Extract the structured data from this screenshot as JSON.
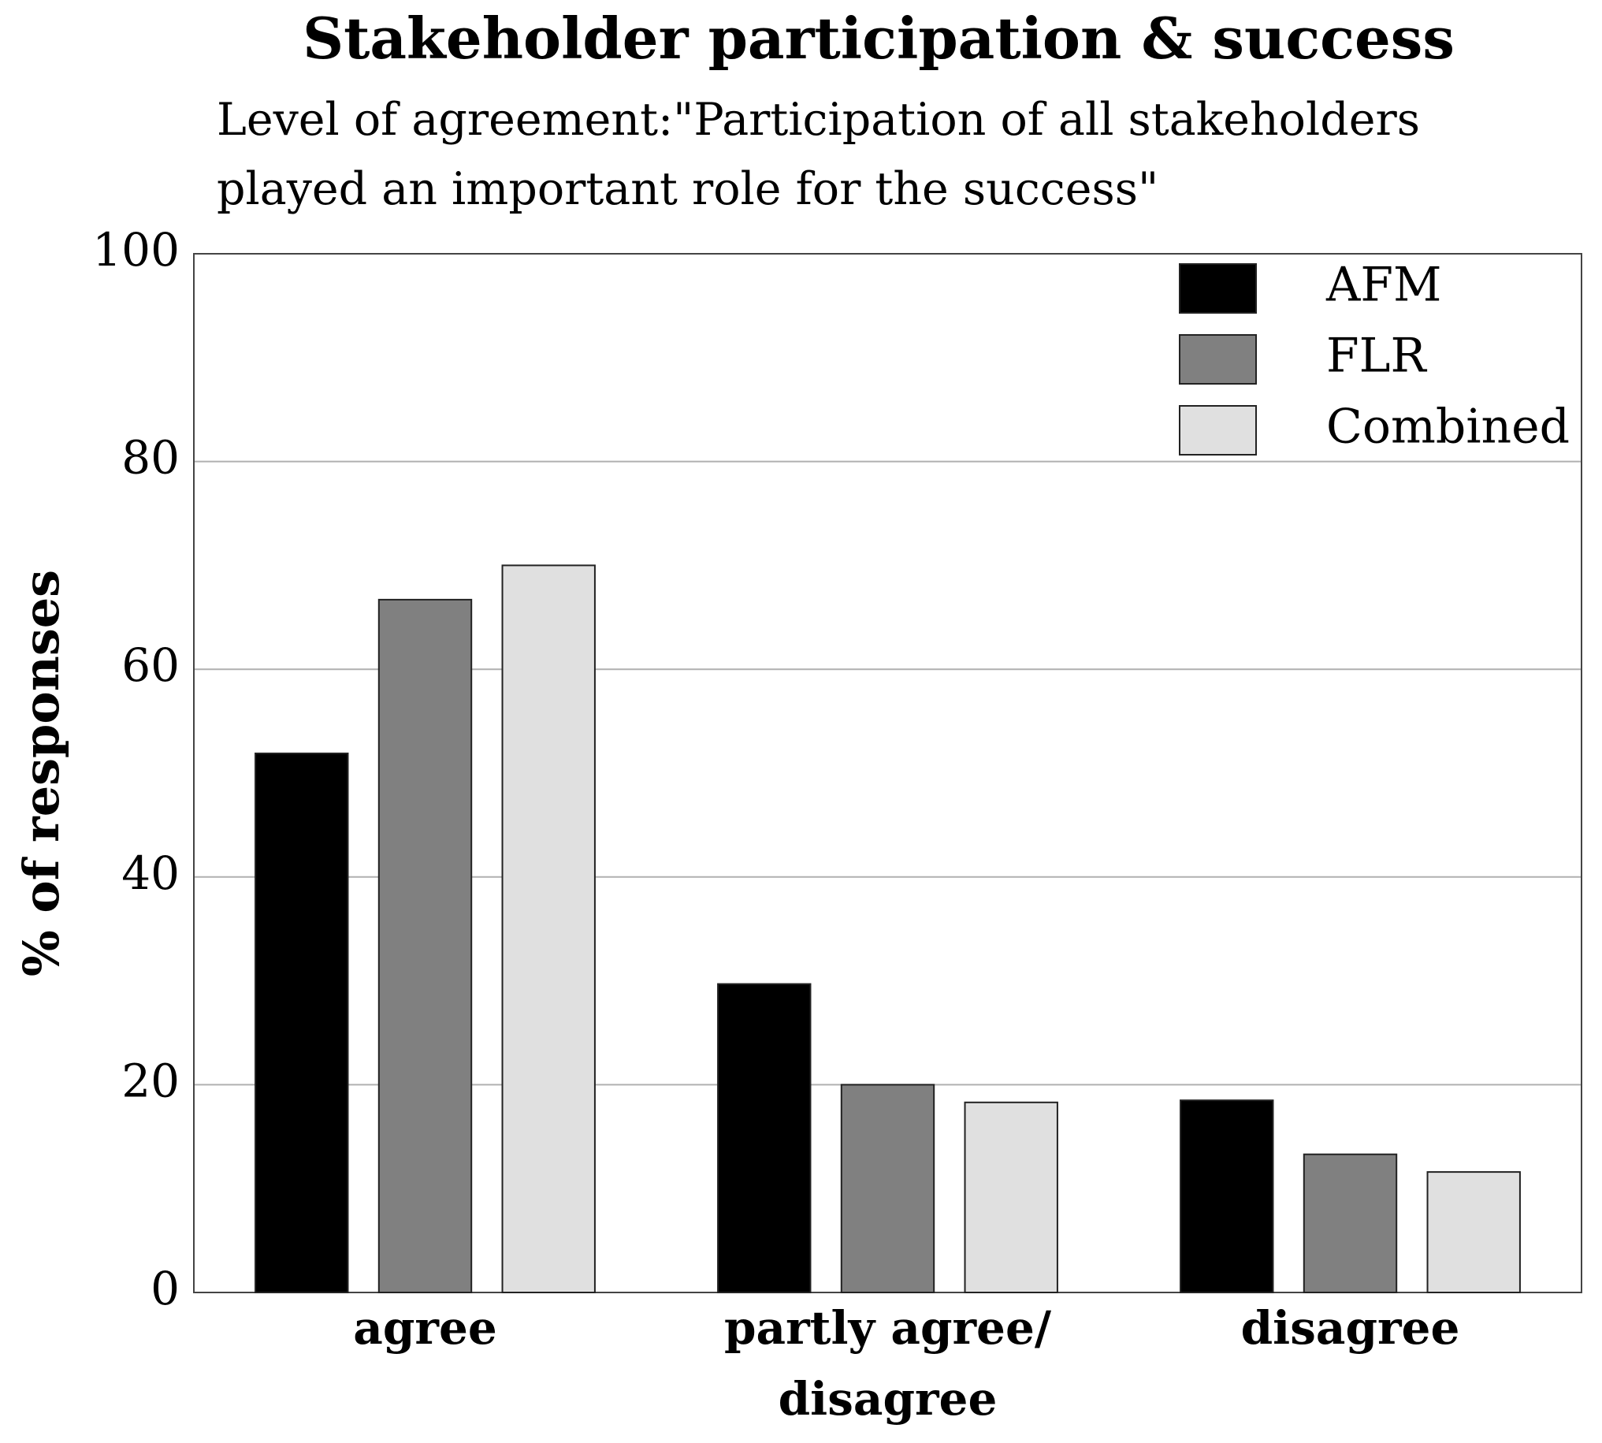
{
  "chart_data": {
    "type": "bar",
    "title": "Stakeholder participation & success",
    "subtitle": "Level of agreement:\"Participation of all stakeholders\nplayed an important role for the success\"",
    "y_label": "% of responses",
    "categories": [
      "agree",
      "partly agree/\ndisagree",
      "disagree"
    ],
    "series": [
      {
        "name": "AFM",
        "color": "#000000",
        "values": [
          51.9,
          29.7,
          18.5
        ]
      },
      {
        "name": "FLR",
        "color": "#808080",
        "values": [
          66.7,
          20,
          13.3
        ]
      },
      {
        "name": "Combined",
        "color": "#e0e0e0",
        "values": [
          70,
          18.3,
          11.6
        ]
      }
    ],
    "ylim": [
      0,
      100
    ],
    "yticks": [
      0,
      20,
      40,
      60,
      80,
      100
    ],
    "grid": true,
    "legend": "top-right"
  }
}
